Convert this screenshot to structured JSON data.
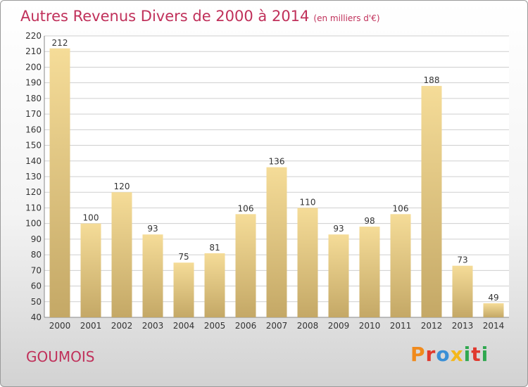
{
  "header": {
    "title": "Autres Revenus Divers de 2000 à 2014",
    "unit": "(en milliers d'€)"
  },
  "footer": {
    "commune": "GOUMOIS",
    "brand": "Proxiti"
  },
  "colors": {
    "title": "#c0305a",
    "bar_light": "#f5dc98",
    "bar_dark": "#c4a866",
    "grid": "#cfcfcf",
    "brand_letters": [
      "#f08a1c",
      "#e0392e",
      "#3a8fd6",
      "#f4b81c",
      "#2fa84f",
      "#e0392e",
      "#2fa84f"
    ]
  },
  "chart_data": {
    "type": "bar",
    "categories": [
      "2000",
      "2001",
      "2002",
      "2003",
      "2004",
      "2005",
      "2006",
      "2007",
      "2008",
      "2009",
      "2010",
      "2011",
      "2012",
      "2013",
      "2014"
    ],
    "values": [
      212,
      100,
      120,
      93,
      75,
      81,
      106,
      136,
      110,
      93,
      98,
      106,
      188,
      73,
      49
    ],
    "title": "Autres Revenus Divers de 2000 à 2014",
    "ylim": [
      40,
      220
    ],
    "yticks": [
      40,
      50,
      60,
      70,
      80,
      90,
      100,
      110,
      120,
      130,
      140,
      150,
      160,
      170,
      180,
      190,
      200,
      210,
      220
    ],
    "grid": true,
    "legend": "none"
  }
}
